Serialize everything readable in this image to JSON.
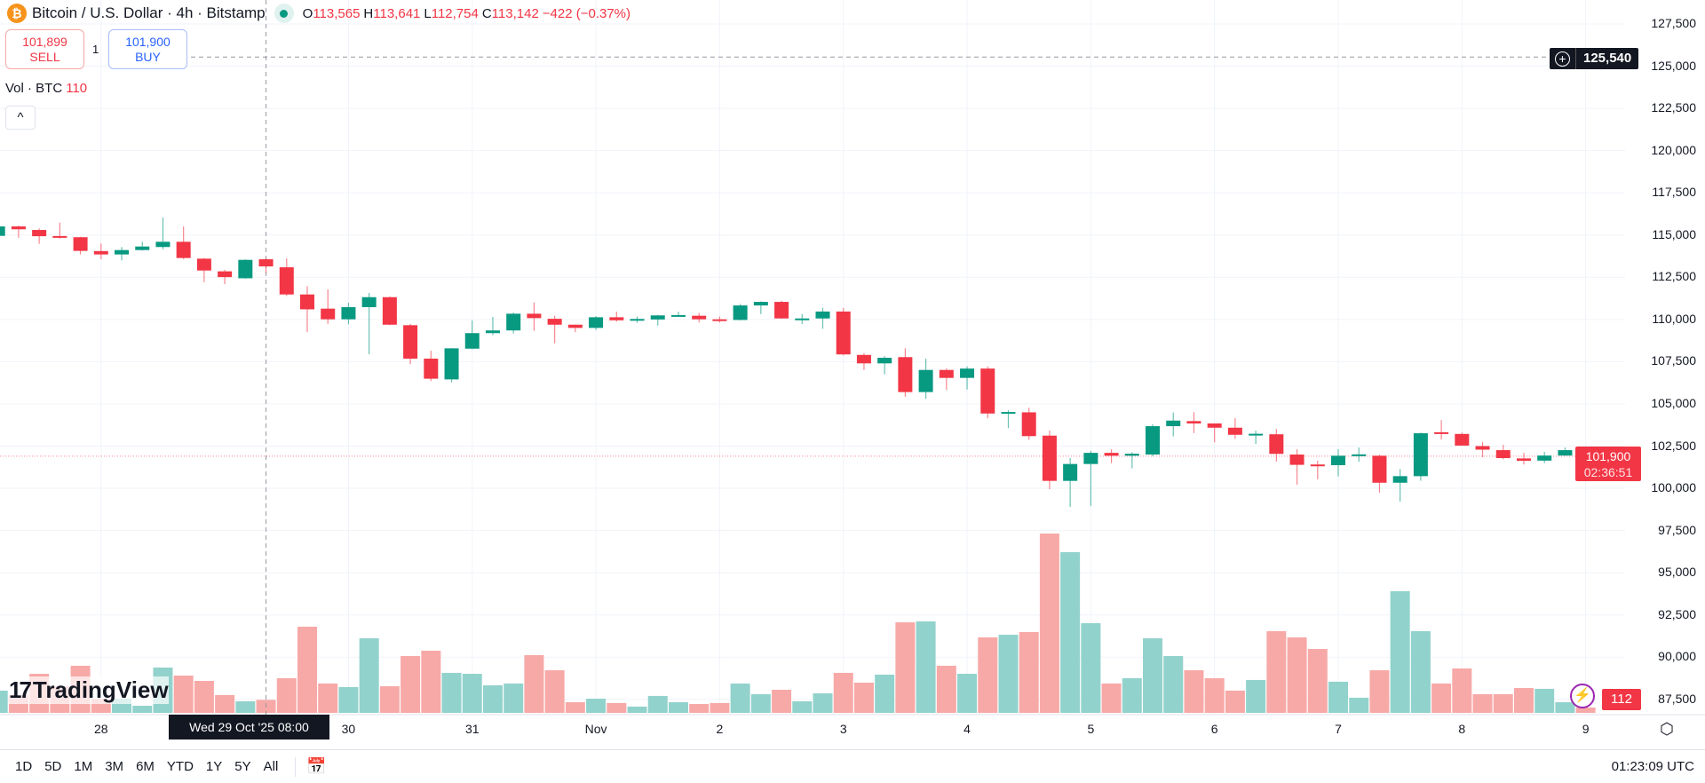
{
  "header": {
    "symbol_title": "Bitcoin / U.S. Dollar · 4h · Bitstamp",
    "ohlc": {
      "o_key": "O",
      "o": "113,565",
      "h_key": "H",
      "h": "113,641",
      "l_key": "L",
      "l": "112,754",
      "c_key": "C",
      "c": "113,142",
      "change": "−422 (−0.37%)"
    }
  },
  "trade": {
    "sell_price": "101,899",
    "sell_label": "SELL",
    "qty": "1",
    "buy_price": "101,900",
    "buy_label": "BUY"
  },
  "volume_legend": {
    "label": "Vol · BTC",
    "value": "110"
  },
  "collapse_glyph": "^",
  "price_axis": {
    "ticks": [
      "127,500",
      "125,000",
      "122,500",
      "120,000",
      "117,500",
      "115,000",
      "112,500",
      "110,000",
      "107,500",
      "105,000",
      "102,500",
      "100,000",
      "97,500",
      "95,000",
      "92,500",
      "90,000",
      "87,500"
    ],
    "crosshair_price": "125,540",
    "last_price": "101,900",
    "countdown": "02:36:51",
    "volume_value": "112"
  },
  "time_axis": {
    "ticks": [
      {
        "label": "28",
        "index": 5
      },
      {
        "label": "30",
        "index": 17
      },
      {
        "label": "31",
        "index": 23
      },
      {
        "label": "Nov",
        "index": 29
      },
      {
        "label": "2",
        "index": 35
      },
      {
        "label": "3",
        "index": 41
      },
      {
        "label": "4",
        "index": 47
      },
      {
        "label": "5",
        "index": 53
      },
      {
        "label": "6",
        "index": 59
      },
      {
        "label": "7",
        "index": 65
      },
      {
        "label": "8",
        "index": 71
      },
      {
        "label": "9",
        "index": 77
      }
    ],
    "crosshair_time": "Wed 29 Oct '25   08:00",
    "crosshair_index": 13
  },
  "branding": "TradingView",
  "bottom_bar": {
    "ranges": [
      "1D",
      "5D",
      "1M",
      "3M",
      "6M",
      "YTD",
      "1Y",
      "5Y",
      "All"
    ],
    "clock": "01:23:09 UTC"
  },
  "colors": {
    "up": "#089981",
    "down": "#f23645",
    "vol_up": "#92d2cc",
    "vol_down": "#f7a9a7"
  },
  "chart_data": {
    "type": "candlestick",
    "title": "Bitcoin / U.S. Dollar · 4h · Bitstamp",
    "ylim": [
      87500,
      127500
    ],
    "fields": [
      "open",
      "high",
      "low",
      "close",
      "volume"
    ],
    "candles": [
      [
        114950,
        115550,
        114900,
        115510,
        188
      ],
      [
        115510,
        115560,
        114840,
        115340,
        150
      ],
      [
        115300,
        115390,
        114480,
        114930,
        330
      ],
      [
        114940,
        115740,
        114790,
        114900,
        225
      ],
      [
        114870,
        114900,
        113850,
        114060,
        398
      ],
      [
        114050,
        114500,
        113570,
        113850,
        120
      ],
      [
        113850,
        114290,
        113500,
        114110,
        120
      ],
      [
        114110,
        114600,
        114080,
        114320,
        60
      ],
      [
        114290,
        116040,
        114160,
        114600,
        383
      ],
      [
        114600,
        115510,
        113570,
        113640,
        315
      ],
      [
        113600,
        113640,
        112210,
        112900,
        270
      ],
      [
        112850,
        112940,
        112090,
        112510,
        150
      ],
      [
        112440,
        113560,
        112410,
        113530,
        98
      ],
      [
        113565,
        113641,
        112754,
        113142,
        110
      ],
      [
        113090,
        113620,
        111390,
        111480,
        293
      ],
      [
        111480,
        111970,
        109250,
        110600,
        728
      ],
      [
        110640,
        111780,
        109740,
        110010,
        248
      ],
      [
        110010,
        110990,
        109710,
        110730,
        218
      ],
      [
        110730,
        111570,
        107940,
        111320,
        630
      ],
      [
        111320,
        111360,
        109660,
        109690,
        225
      ],
      [
        109660,
        109740,
        107350,
        107680,
        480
      ],
      [
        107680,
        108150,
        106350,
        106490,
        525
      ],
      [
        106450,
        108310,
        106270,
        108290,
        338
      ],
      [
        108270,
        109940,
        108240,
        109190,
        330
      ],
      [
        109190,
        110150,
        109080,
        109350,
        233
      ],
      [
        109350,
        110410,
        109170,
        110340,
        248
      ],
      [
        110340,
        111010,
        109330,
        110080,
        488
      ],
      [
        110040,
        110220,
        108590,
        109690,
        360
      ],
      [
        109690,
        109700,
        109250,
        109500,
        90
      ],
      [
        109500,
        110200,
        109380,
        110130,
        120
      ],
      [
        110130,
        110460,
        109870,
        109950,
        83
      ],
      [
        109950,
        110180,
        109800,
        110030,
        53
      ],
      [
        110000,
        110270,
        109640,
        110240,
        143
      ],
      [
        110200,
        110460,
        110180,
        110260,
        90
      ],
      [
        110220,
        110390,
        109820,
        110010,
        75
      ],
      [
        110010,
        110170,
        109820,
        109970,
        83
      ],
      [
        109970,
        110920,
        109950,
        110830,
        248
      ],
      [
        110830,
        111070,
        110320,
        111040,
        158
      ],
      [
        111040,
        111100,
        110040,
        110060,
        195
      ],
      [
        109990,
        110320,
        109730,
        110060,
        98
      ],
      [
        110060,
        110690,
        109450,
        110470,
        165
      ],
      [
        110470,
        110690,
        107870,
        107930,
        338
      ],
      [
        107900,
        108010,
        107010,
        107400,
        255
      ],
      [
        107400,
        107830,
        106750,
        107730,
        323
      ],
      [
        107770,
        108290,
        105430,
        105700,
        765
      ],
      [
        105700,
        107680,
        105300,
        107010,
        773
      ],
      [
        107010,
        107100,
        105820,
        106540,
        398
      ],
      [
        106540,
        107220,
        105850,
        107090,
        330
      ],
      [
        107090,
        107220,
        104150,
        104430,
        638
      ],
      [
        104430,
        104630,
        103560,
        104520,
        660
      ],
      [
        104500,
        104770,
        102880,
        103090,
        683
      ],
      [
        103120,
        103420,
        99950,
        100440,
        1515
      ],
      [
        100440,
        101800,
        98900,
        101440,
        1358
      ],
      [
        101440,
        102220,
        98960,
        102100,
        758
      ],
      [
        102100,
        102310,
        101490,
        101930,
        248
      ],
      [
        101930,
        102140,
        101180,
        102050,
        293
      ],
      [
        102000,
        103790,
        101890,
        103680,
        630
      ],
      [
        103680,
        104490,
        103070,
        104010,
        480
      ],
      [
        103980,
        104510,
        103270,
        103840,
        360
      ],
      [
        103840,
        103840,
        102720,
        103590,
        293
      ],
      [
        103590,
        104150,
        102930,
        103170,
        188
      ],
      [
        103170,
        103420,
        102630,
        103230,
        278
      ],
      [
        103200,
        103510,
        101580,
        102040,
        690
      ],
      [
        102000,
        102310,
        100220,
        101390,
        638
      ],
      [
        101410,
        101640,
        100530,
        101370,
        540
      ],
      [
        101370,
        102310,
        100700,
        101930,
        263
      ],
      [
        101920,
        102420,
        101570,
        102010,
        128
      ],
      [
        101930,
        101990,
        99750,
        100330,
        360
      ],
      [
        100330,
        101140,
        99210,
        100720,
        1028
      ],
      [
        100720,
        103300,
        100450,
        103260,
        690
      ],
      [
        103320,
        104040,
        102890,
        103240,
        248
      ],
      [
        103220,
        103300,
        102520,
        102530,
        375
      ],
      [
        102500,
        102750,
        101840,
        102290,
        158
      ],
      [
        102260,
        102580,
        101720,
        101790,
        158
      ],
      [
        101770,
        102100,
        101410,
        101630,
        210
      ],
      [
        101640,
        102160,
        101490,
        101940,
        203
      ],
      [
        101940,
        102420,
        101920,
        102260,
        90
      ],
      [
        102260,
        102260,
        101650,
        101900,
        45
      ]
    ]
  }
}
